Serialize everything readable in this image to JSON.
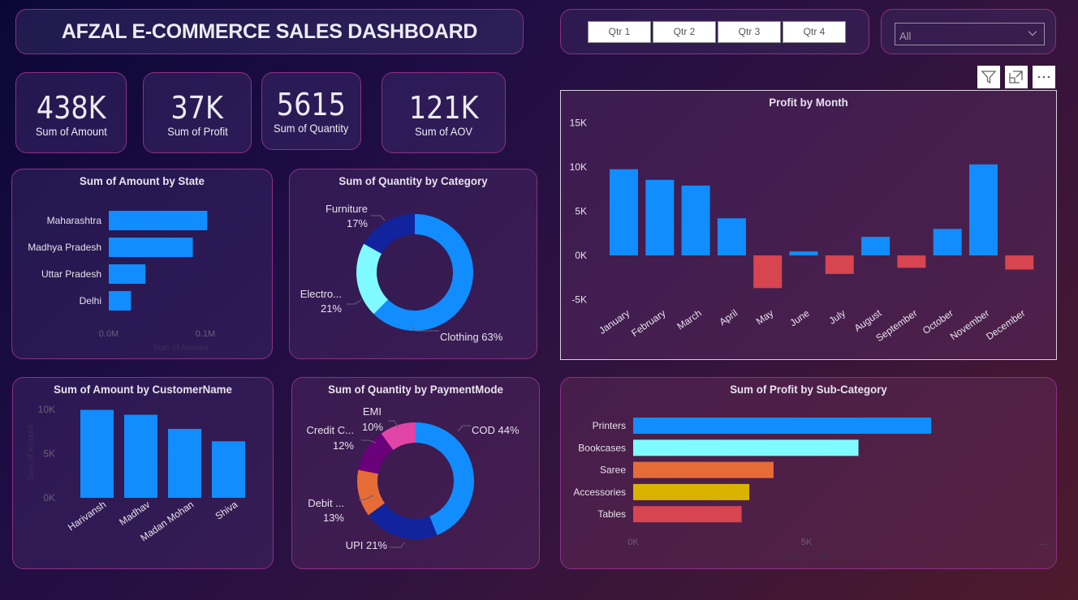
{
  "header": {
    "title": "AFZAL E-COMMERCE SALES DASHBOARD"
  },
  "kpis": [
    {
      "value": "438K",
      "label": "Sum of Amount"
    },
    {
      "value": "37K",
      "label": "Sum of Profit"
    },
    {
      "value": "5615",
      "label": "Sum of Quantity"
    },
    {
      "value": "121K",
      "label": "Sum of AOV"
    }
  ],
  "quarter_slicer": {
    "options": [
      "Qtr 1",
      "Qtr 2",
      "Qtr 3",
      "Qtr 4"
    ]
  },
  "state_dropdown": {
    "selected": "All"
  },
  "visual_header": {
    "icons": [
      "filter-icon",
      "focus-mode-icon",
      "more-options-icon"
    ]
  },
  "colors": {
    "blue": "#118dff",
    "navy": "#12239e",
    "cyan": "#7ffbff",
    "orange": "#e66c37",
    "gold": "#d9b300",
    "red": "#d64550",
    "purple": "#6b007b",
    "pink": "#e044a7"
  },
  "chart_data": [
    {
      "id": "amount_by_state",
      "type": "bar",
      "orientation": "horizontal",
      "title": "Sum of Amount by State",
      "categories": [
        "Maharashtra",
        "Madhya Pradesh",
        "Uttar Pradesh",
        "Delhi"
      ],
      "values": [
        0.102,
        0.087,
        0.038,
        0.023
      ],
      "xlabel": "Sum of Amount",
      "ticks": [
        "0.0M",
        "0.1M"
      ],
      "xlim": [
        0,
        0.1
      ],
      "color": "#118dff"
    },
    {
      "id": "quantity_by_category",
      "type": "pie",
      "donut": true,
      "title": "Sum of Quantity by Category",
      "categories": [
        "Clothing",
        "Electro...",
        "Furniture"
      ],
      "values": [
        63,
        21,
        17
      ],
      "labels": [
        "Clothing 63%",
        "Electro...\n21%",
        "Furniture\n17%"
      ],
      "colors": [
        "#118dff",
        "#7ffbff",
        "#12239e"
      ]
    },
    {
      "id": "profit_by_month",
      "type": "bar",
      "title": "Profit by Month",
      "categories": [
        "January",
        "February",
        "March",
        "April",
        "May",
        "June",
        "July",
        "August",
        "September",
        "October",
        "November",
        "December"
      ],
      "values": [
        9.75,
        8.55,
        7.9,
        4.2,
        -3.7,
        0.45,
        -2.1,
        2.1,
        -1.4,
        3.0,
        10.3,
        -1.6
      ],
      "unit": "K",
      "yticks": [
        "15K",
        "10K",
        "5K",
        "0K",
        "-5K"
      ],
      "ylim": [
        -5,
        15
      ],
      "positive_color": "#118dff",
      "negative_color": "#d64550"
    },
    {
      "id": "amount_by_customer",
      "type": "bar",
      "title": "Sum of Amount by CustomerName",
      "categories": [
        "Harivansh",
        "Madhav",
        "Madan Mohan",
        "Shiva"
      ],
      "values": [
        9.95,
        9.4,
        7.8,
        6.4
      ],
      "unit": "K",
      "ylabel": "Sum of Amount",
      "yticks": [
        "10K",
        "5K",
        "0K"
      ],
      "ylim": [
        0,
        10
      ],
      "color": "#118dff"
    },
    {
      "id": "quantity_by_paymentmode",
      "type": "pie",
      "donut": true,
      "title": "Sum of Quantity by PaymentMode",
      "categories": [
        "COD",
        "UPI",
        "Debit ...",
        "Credit C...",
        "EMI"
      ],
      "values": [
        44,
        21,
        13,
        12,
        10
      ],
      "labels": [
        "COD 44%",
        "UPI 21%",
        "Debit ...\n13%",
        "Credit C...\n12%",
        "EMI\n10%"
      ],
      "colors": [
        "#118dff",
        "#12239e",
        "#e66c37",
        "#6b007b",
        "#e044a7"
      ]
    },
    {
      "id": "profit_by_subcategory",
      "type": "bar",
      "orientation": "horizontal",
      "title": "Sum of Profit by Sub-Category",
      "categories": [
        "Printers",
        "Bookcases",
        "Saree",
        "Accessories",
        "Tables"
      ],
      "values": [
        8.6,
        6.5,
        4.05,
        3.35,
        3.13
      ],
      "unit": "K",
      "xlabel": "Sum of Profit",
      "ticks": [
        "0K",
        "5K",
        "..."
      ],
      "xlim": [
        0,
        5
      ],
      "colors": [
        "#118dff",
        "#7ffbff",
        "#e66c37",
        "#d9b300",
        "#d64550"
      ]
    }
  ]
}
